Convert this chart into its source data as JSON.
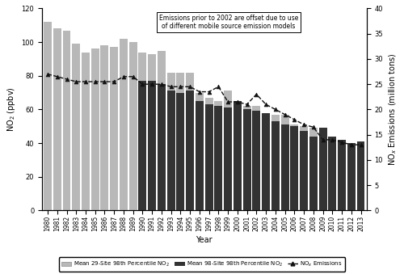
{
  "years": [
    1980,
    1981,
    1982,
    1983,
    1984,
    1985,
    1986,
    1987,
    1988,
    1989,
    1990,
    1991,
    1992,
    1993,
    1994,
    1995,
    1996,
    1997,
    1998,
    1999,
    2000,
    2001,
    2002,
    2003,
    2004,
    2005,
    2006,
    2007,
    2008,
    2009,
    2010,
    2011,
    2012,
    2013
  ],
  "no2_29site": [
    112,
    108,
    107,
    99,
    94,
    96,
    98,
    97,
    102,
    100,
    94,
    93,
    95,
    82,
    82,
    82,
    70,
    67,
    65,
    71,
    65,
    62,
    62,
    57,
    57,
    57,
    51,
    50,
    49,
    null,
    null,
    null,
    null,
    null
  ],
  "no2_98site": [
    null,
    null,
    null,
    null,
    null,
    null,
    null,
    null,
    null,
    null,
    77,
    77,
    75,
    71,
    70,
    71,
    65,
    63,
    62,
    61,
    65,
    60,
    59,
    58,
    53,
    51,
    50,
    47,
    44,
    49,
    44,
    42,
    40,
    41
  ],
  "nox_emissions": [
    27,
    26.5,
    26,
    25.5,
    25.5,
    25.5,
    25.5,
    25.5,
    26.5,
    26.5,
    25,
    25,
    25,
    24.5,
    24.5,
    24.5,
    23.5,
    23.5,
    24.5,
    21.5,
    21.5,
    21,
    23,
    21,
    20,
    19,
    18,
    17,
    16.5,
    14,
    14,
    13.5,
    13,
    13
  ],
  "annotation": "Emissions prior to 2002 are offset due to use\nof different mobile source emission models",
  "ylabel_left": "NO$_2$ (ppbv)",
  "ylabel_right": "NO$_x$ Emissions (million tons)",
  "xlabel": "Year",
  "ylim_left": [
    0,
    120
  ],
  "ylim_right": [
    0,
    40
  ],
  "yticks_left": [
    0,
    20,
    40,
    60,
    80,
    100,
    120
  ],
  "yticks_right": [
    0,
    5,
    10,
    15,
    20,
    25,
    30,
    35,
    40
  ],
  "bar_color_29": "#b8b8b8",
  "bar_color_98": "#333333",
  "line_color": "#111111",
  "legend_29": "Mean 29-Site 98th Percentile NO$_2$",
  "legend_98": "Mean 98-Site 98th Percentile NO$_2$",
  "legend_nox": "NO$_x$ Emissions",
  "bg_color": "#ffffff"
}
